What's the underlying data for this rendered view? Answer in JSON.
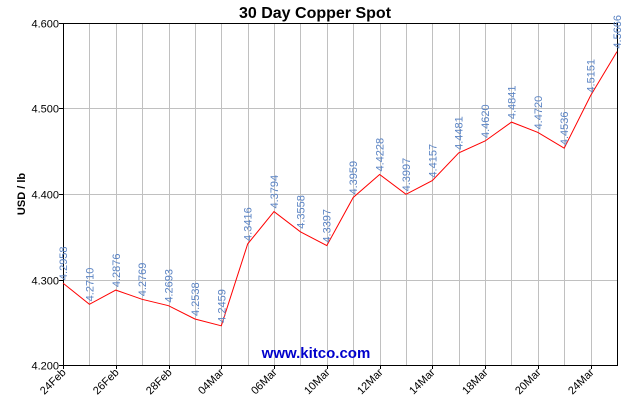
{
  "chart_data": {
    "type": "line",
    "title": "30 Day Copper Spot",
    "ylabel": "USD / lb",
    "xlabel": "",
    "watermark": "www.kitco.com",
    "ylim": [
      4.2,
      4.6
    ],
    "yticks": [
      "4.200",
      "4.300",
      "4.400",
      "4.500",
      "4.600"
    ],
    "xtick_labels": [
      "24Feb",
      "26Feb",
      "28Feb",
      "04Mar",
      "06Mar",
      "10Mar",
      "12Mar",
      "14Mar",
      "18Mar",
      "20Mar",
      "24Mar"
    ],
    "series": [
      {
        "color": "#ff0000",
        "values": [
          4.2958,
          4.271,
          4.2876,
          4.2769,
          4.2693,
          4.2538,
          4.2459,
          4.3416,
          4.3794,
          4.3558,
          4.3397,
          4.3959,
          4.4228,
          4.3997,
          4.4157,
          4.4481,
          4.462,
          4.4841,
          4.472,
          4.4536,
          4.5151,
          4.5666
        ],
        "labels": [
          "4.2958",
          "4.2710",
          "4.2876",
          "4.2769",
          "4.2693",
          "4.2538",
          "4.2459",
          "4.3416",
          "4.3794",
          "4.3558",
          "4.3397",
          "4.3959",
          "4.4228",
          "4.3997",
          "4.4157",
          "4.4481",
          "4.4620",
          "4.4841",
          "4.4720",
          "4.4536",
          "4.5151",
          "4.5666"
        ]
      }
    ],
    "grid": true,
    "colors": {
      "line": "#ff0000",
      "labels": "#5b84c4",
      "grid": "#c0c0c0",
      "watermark": "#0000cc"
    }
  }
}
